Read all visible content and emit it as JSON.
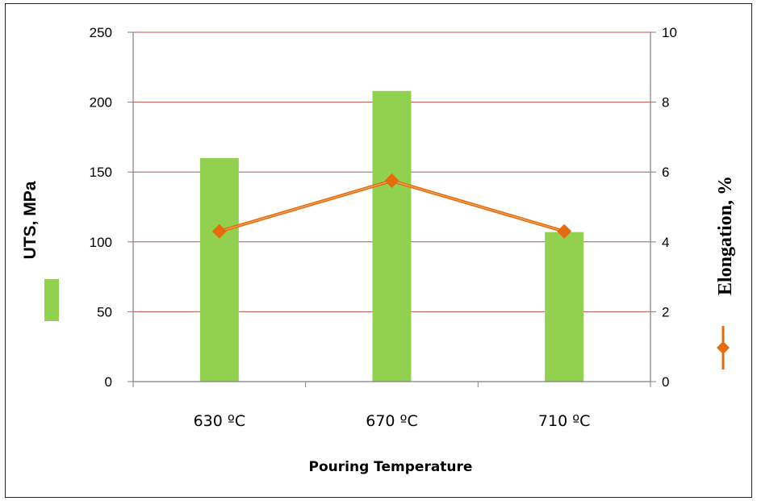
{
  "chart_data": {
    "type": "bar",
    "categories": [
      "630 ºC",
      "670 ºC",
      "710 ºC"
    ],
    "xlabel": "Pouring Temperature",
    "ylabel": "UTS, MPa",
    "y2label": "Elongation, %",
    "ylim": [
      0,
      250
    ],
    "y2lim": [
      0,
      10
    ],
    "yticks": [
      "0",
      "50",
      "100",
      "150",
      "200",
      "250"
    ],
    "y2ticks": [
      "0",
      "2",
      "4",
      "6",
      "8",
      "10"
    ],
    "grid": true,
    "legend": "inline-with-axis-titles",
    "series": [
      {
        "kind": "bar",
        "axis": "left",
        "values": [
          160,
          208,
          107
        ],
        "color": "#92d050"
      },
      {
        "kind": "line",
        "axis": "right",
        "marker": "diamond",
        "values": [
          4.3,
          5.75,
          4.3
        ],
        "color": "#e46c0a"
      }
    ],
    "gridColor": "#c0504d"
  }
}
